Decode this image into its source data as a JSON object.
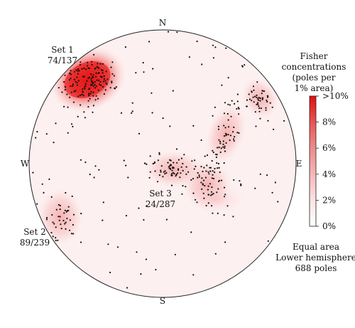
{
  "chart_data": {
    "type": "stereonet",
    "projection": "Equal area",
    "hemisphere": "Lower hemisphere",
    "pole_count_label": "688 poles",
    "compass": {
      "north": "N",
      "south": "S",
      "east": "E",
      "west": "W"
    },
    "colorbar": {
      "title_lines": [
        "Fisher",
        "concentrations",
        "(poles per",
        "1% area)"
      ],
      "tick_labels": [
        "0%",
        "2%",
        "4%",
        "6%",
        "8%",
        ">10%"
      ],
      "tick_values": [
        0,
        2,
        4,
        6,
        8,
        10
      ],
      "color_low": "#ffffff",
      "color_high": "#e01010"
    },
    "sets": [
      {
        "name": "Set 1",
        "orientation": "74/137"
      },
      {
        "name": "Set 2",
        "orientation": "89/239"
      },
      {
        "name": "Set 3",
        "orientation": "24/287"
      }
    ],
    "background_fill": "#fdf0f0",
    "point_color": "#111111"
  }
}
